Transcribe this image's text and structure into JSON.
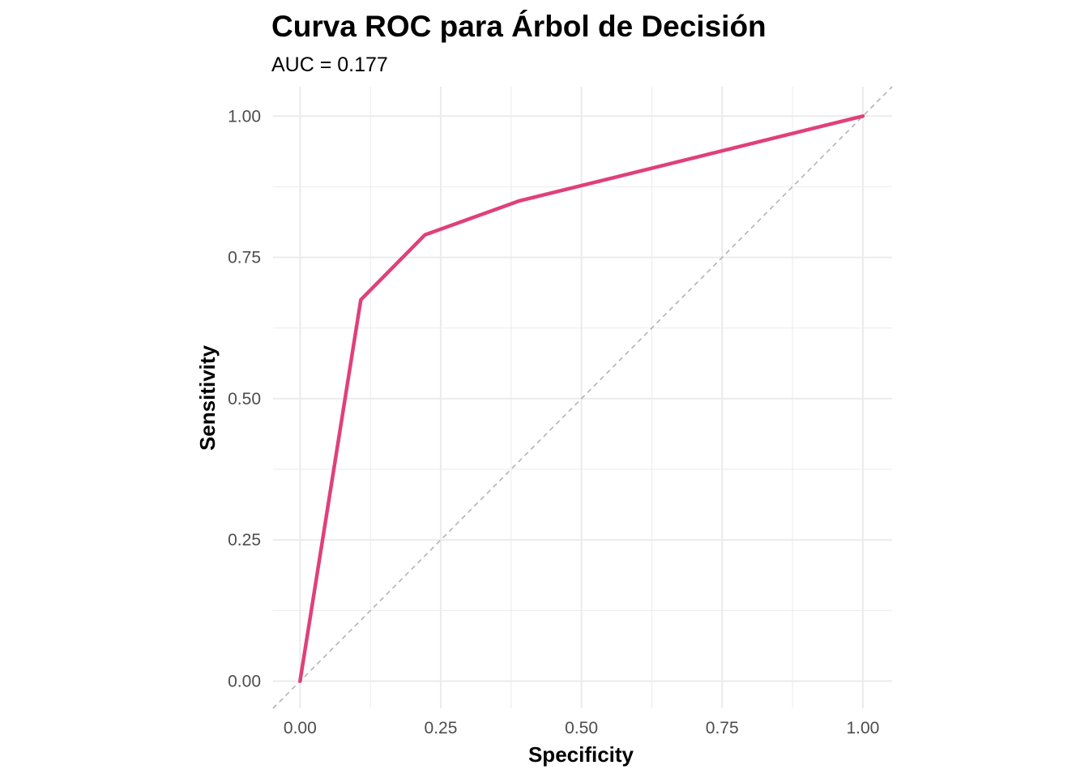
{
  "chart_data": {
    "type": "line",
    "title": "Curva ROC para Árbol de Decisión",
    "subtitle": "AUC = 0.177",
    "xlabel": "Specificity",
    "ylabel": "Sensitivity",
    "xlim": [
      -0.048,
      1.052
    ],
    "ylim": [
      -0.048,
      1.052
    ],
    "x_ticks": [
      "0.00",
      "0.25",
      "0.50",
      "0.75",
      "1.00"
    ],
    "y_ticks": [
      "0.00",
      "0.25",
      "0.50",
      "0.75",
      "1.00"
    ],
    "x_tick_values": [
      0,
      0.25,
      0.5,
      0.75,
      1
    ],
    "y_tick_values": [
      0,
      0.25,
      0.5,
      0.75,
      1
    ],
    "grid": true,
    "legend": "none",
    "series": [
      {
        "color": "#e0407a",
        "x": [
          0,
          0.108,
          0.222,
          0.39,
          1
        ],
        "y": [
          0,
          0.675,
          0.79,
          0.85,
          1
        ]
      }
    ],
    "reference_line": {
      "x": [
        -0.048,
        1.052
      ],
      "y": [
        -0.048,
        1.052
      ],
      "style": "dashed",
      "color": "#b3b3b3"
    },
    "colors": {
      "background": "#ffffff",
      "grid": "#ebebeb",
      "tick_text": "#4d4d4d"
    }
  }
}
